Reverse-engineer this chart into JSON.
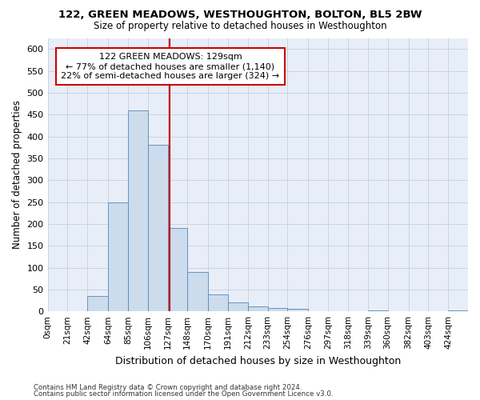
{
  "title1": "122, GREEN MEADOWS, WESTHOUGHTON, BOLTON, BL5 2BW",
  "title2": "Size of property relative to detached houses in Westhoughton",
  "xlabel": "Distribution of detached houses by size in Westhoughton",
  "ylabel": "Number of detached properties",
  "footnote1": "Contains HM Land Registry data © Crown copyright and database right 2024.",
  "footnote2": "Contains public sector information licensed under the Open Government Licence v3.0.",
  "annotation_line1": "122 GREEN MEADOWS: 129sqm",
  "annotation_line2": "← 77% of detached houses are smaller (1,140)",
  "annotation_line3": "22% of semi-detached houses are larger (324) →",
  "property_size": 129,
  "bar_color": "#ccdcec",
  "bar_edge_color": "#5588bb",
  "line_color": "#cc0000",
  "annotation_box_edge_color": "#cc0000",
  "grid_color": "#c8d4e0",
  "background_color": "#e8eef8",
  "bin_edges": [
    0,
    21,
    42,
    64,
    85,
    106,
    127,
    148,
    170,
    191,
    212,
    233,
    254,
    276,
    297,
    318,
    339,
    360,
    382,
    403,
    424,
    445
  ],
  "bin_labels": [
    "0sqm",
    "21sqm",
    "42sqm",
    "64sqm",
    "85sqm",
    "106sqm",
    "127sqm",
    "148sqm",
    "170sqm",
    "191sqm",
    "212sqm",
    "233sqm",
    "254sqm",
    "276sqm",
    "297sqm",
    "318sqm",
    "339sqm",
    "360sqm",
    "382sqm",
    "403sqm",
    "424sqm"
  ],
  "counts": [
    0,
    0,
    35,
    250,
    460,
    380,
    190,
    90,
    38,
    20,
    12,
    7,
    5,
    0,
    0,
    0,
    2,
    0,
    0,
    0,
    2
  ],
  "ylim": [
    0,
    625
  ],
  "yticks": [
    0,
    50,
    100,
    150,
    200,
    250,
    300,
    350,
    400,
    450,
    500,
    550,
    600
  ]
}
